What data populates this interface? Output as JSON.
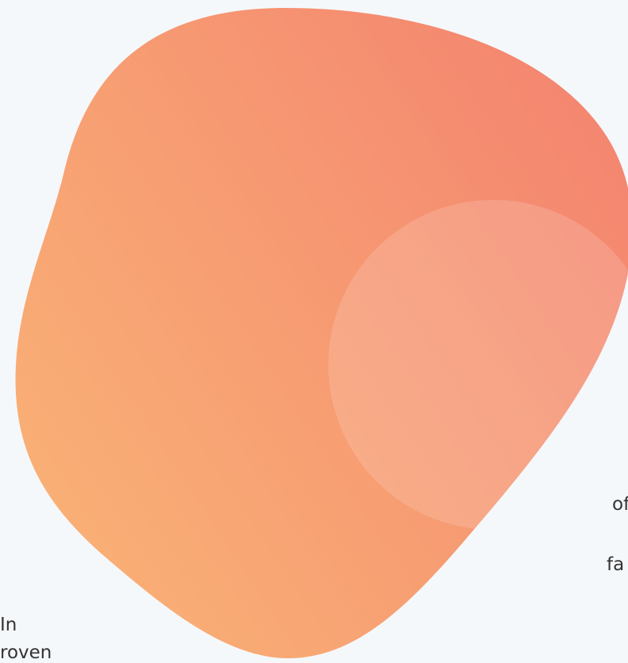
{
  "left_text": [
    "In",
    "roven"
  ],
  "right_text": [
    "of",
    "fa"
  ]
}
